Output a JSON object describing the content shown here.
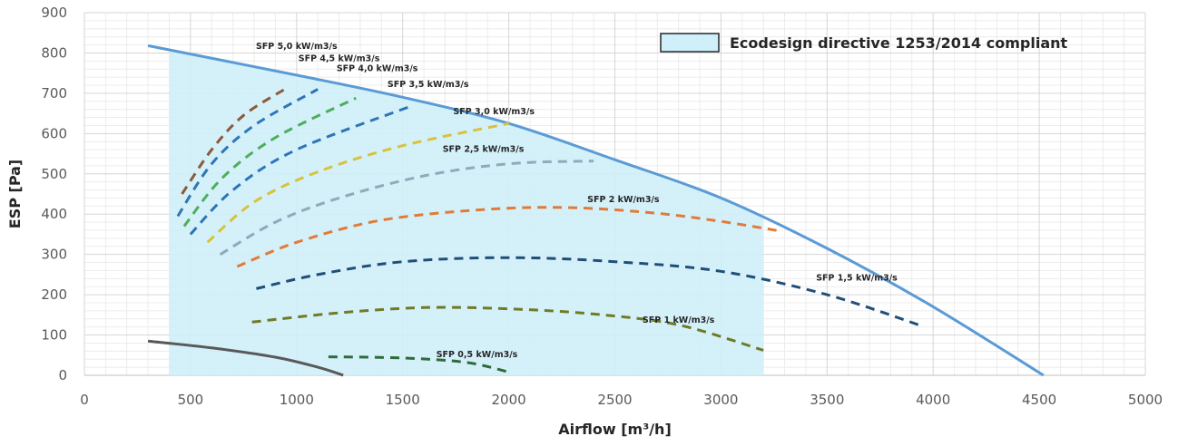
{
  "chart_data": {
    "type": "line",
    "xlabel": "Airflow [m³/h]",
    "ylabel": "ESP [Pa]",
    "xlim": [
      0,
      5000
    ],
    "ylim": [
      0,
      900
    ],
    "x_ticks": [
      "0",
      "500",
      "1000",
      "1500",
      "2000",
      "2500",
      "3000",
      "3500",
      "4000",
      "4500",
      "5000"
    ],
    "y_ticks": [
      "0",
      "100",
      "200",
      "300",
      "400",
      "500",
      "600",
      "700",
      "800",
      "900"
    ],
    "grid": true,
    "legend_position": "top-right",
    "legend": {
      "label": "Ecodesign directive 1253/2014 compliant",
      "color": "#CFEFFA"
    },
    "compliant_region": {
      "x_min": 400,
      "x_max": 3200,
      "fill": "#CFEFFA"
    },
    "max_curve": {
      "color": "#5B9BD5",
      "points": [
        [
          300,
          818
        ],
        [
          1000,
          745
        ],
        [
          1500,
          690
        ],
        [
          2000,
          625
        ],
        [
          2500,
          535
        ],
        [
          3000,
          440
        ],
        [
          3500,
          315
        ],
        [
          4000,
          170
        ],
        [
          4520,
          0
        ]
      ]
    },
    "min_curve": {
      "color": "#595959",
      "points": [
        [
          300,
          85
        ],
        [
          600,
          68
        ],
        [
          900,
          45
        ],
        [
          1100,
          20
        ],
        [
          1220,
          0
        ]
      ]
    },
    "series": [
      {
        "name": "SFP 5,0 kW/m3/s",
        "color": "#8B5A3C",
        "points": [
          [
            460,
            450
          ],
          [
            600,
            560
          ],
          [
            750,
            645
          ],
          [
            950,
            712
          ]
        ]
      },
      {
        "name": "SFP 4,5 kW/m3/s",
        "color": "#2E75B6",
        "points": [
          [
            440,
            395
          ],
          [
            600,
            525
          ],
          [
            800,
            620
          ],
          [
            1100,
            710
          ]
        ]
      },
      {
        "name": "SFP 4,0 kW/m3/s",
        "color": "#4EAE5B",
        "points": [
          [
            470,
            370
          ],
          [
            650,
            490
          ],
          [
            900,
            590
          ],
          [
            1280,
            688
          ]
        ]
      },
      {
        "name": "SFP 3,5 kW/m3/s",
        "color": "#2E75B6",
        "points": [
          [
            500,
            350
          ],
          [
            700,
            460
          ],
          [
            1000,
            560
          ],
          [
            1550,
            670
          ]
        ]
      },
      {
        "name": "SFP 3,0 kW/m3/s",
        "color": "#D9C23A",
        "points": [
          [
            580,
            330
          ],
          [
            800,
            430
          ],
          [
            1100,
            505
          ],
          [
            1500,
            570
          ],
          [
            2000,
            625
          ]
        ]
      },
      {
        "name": "SFP 2,5 kW/m3/s",
        "color": "#8FAABC",
        "points": [
          [
            640,
            300
          ],
          [
            900,
            380
          ],
          [
            1200,
            440
          ],
          [
            1600,
            495
          ],
          [
            2000,
            525
          ],
          [
            2400,
            532
          ]
        ]
      },
      {
        "name": "SFP 2 kW/m3/s",
        "color": "#E07B39",
        "points": [
          [
            720,
            270
          ],
          [
            1000,
            330
          ],
          [
            1400,
            385
          ],
          [
            1900,
            412
          ],
          [
            2300,
            416
          ],
          [
            2700,
            402
          ],
          [
            3000,
            382
          ],
          [
            3280,
            358
          ]
        ]
      },
      {
        "name": "SFP 1,5 kW/m3/s",
        "color": "#1F4E79",
        "points": [
          [
            810,
            215
          ],
          [
            1100,
            250
          ],
          [
            1500,
            282
          ],
          [
            2000,
            292
          ],
          [
            2500,
            282
          ],
          [
            3000,
            258
          ],
          [
            3500,
            200
          ],
          [
            3950,
            122
          ]
        ]
      },
      {
        "name": "SFP 1 kW/m3/s",
        "color": "#6F7A26",
        "points": [
          [
            790,
            132
          ],
          [
            1200,
            155
          ],
          [
            1600,
            168
          ],
          [
            2000,
            165
          ],
          [
            2400,
            152
          ],
          [
            2800,
            125
          ],
          [
            3200,
            62
          ]
        ]
      },
      {
        "name": "SFP 0,5 kW/m3/s",
        "color": "#2E6B3A",
        "points": [
          [
            1150,
            46
          ],
          [
            1500,
            43
          ],
          [
            1800,
            32
          ],
          [
            2000,
            8
          ]
        ]
      }
    ],
    "annotations": [
      {
        "text": "SFP 5,0 kW/m3/s",
        "x": 1000,
        "y": 810
      },
      {
        "text": "SFP 4,5 kW/m3/s",
        "x": 1200,
        "y": 780
      },
      {
        "text": "SFP 4,0 kW/m3/s",
        "x": 1380,
        "y": 755
      },
      {
        "text": "SFP 3,5 kW/m3/s",
        "x": 1620,
        "y": 715
      },
      {
        "text": "SFP 3,0 kW/m3/s",
        "x": 1930,
        "y": 648
      },
      {
        "text": "SFP 2,5 kW/m3/s",
        "x": 1880,
        "y": 555
      },
      {
        "text": "SFP 2 kW/m3/s",
        "x": 2540,
        "y": 430
      },
      {
        "text": "SFP 1,5 kW/m3/s",
        "x": 3640,
        "y": 235
      },
      {
        "text": "SFP 1 kW/m3/s",
        "x": 2800,
        "y": 130
      },
      {
        "text": "SFP 0,5 kW/m3/s",
        "x": 1850,
        "y": 45
      }
    ]
  }
}
